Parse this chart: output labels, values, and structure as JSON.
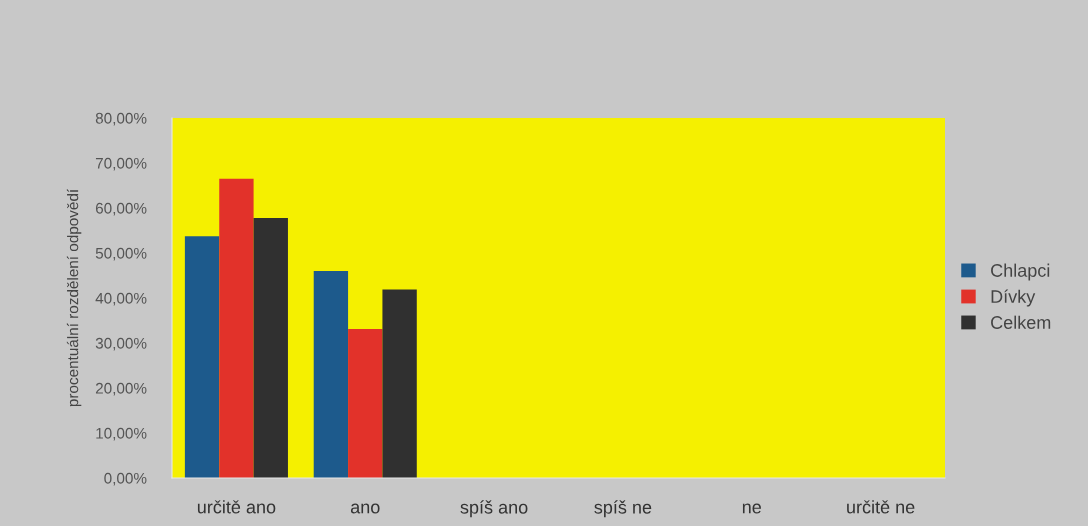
{
  "chart_data": {
    "type": "bar",
    "ylabel": "procentuální rozdělení odpovědí",
    "categories": [
      "určitě ano",
      "ano",
      "spíš ano",
      "spíš ne",
      "ne",
      "určitě ne"
    ],
    "series": [
      {
        "name": "Chlapci",
        "color": "#1d5a8c",
        "values": [
          53.7,
          46.0,
          null,
          null,
          null,
          null
        ]
      },
      {
        "name": "Dívky",
        "color": "#e2322a",
        "values": [
          66.5,
          33.1,
          null,
          null,
          null,
          null
        ]
      },
      {
        "name": "Celkem",
        "color": "#303030",
        "values": [
          57.8,
          41.9,
          null,
          null,
          null,
          null
        ]
      }
    ],
    "ylim": [
      0,
      80
    ],
    "yticks": [
      {
        "value": 0,
        "label": "0,00%"
      },
      {
        "value": 10,
        "label": "10,00%"
      },
      {
        "value": 20,
        "label": "20,00%"
      },
      {
        "value": 30,
        "label": "30,00%"
      },
      {
        "value": 40,
        "label": "40,00%"
      },
      {
        "value": 50,
        "label": "50,00%"
      },
      {
        "value": 60,
        "label": "60,00%"
      },
      {
        "value": 70,
        "label": "70,00%"
      },
      {
        "value": 80,
        "label": "80,00%"
      }
    ],
    "grid": false,
    "legend": "right"
  }
}
